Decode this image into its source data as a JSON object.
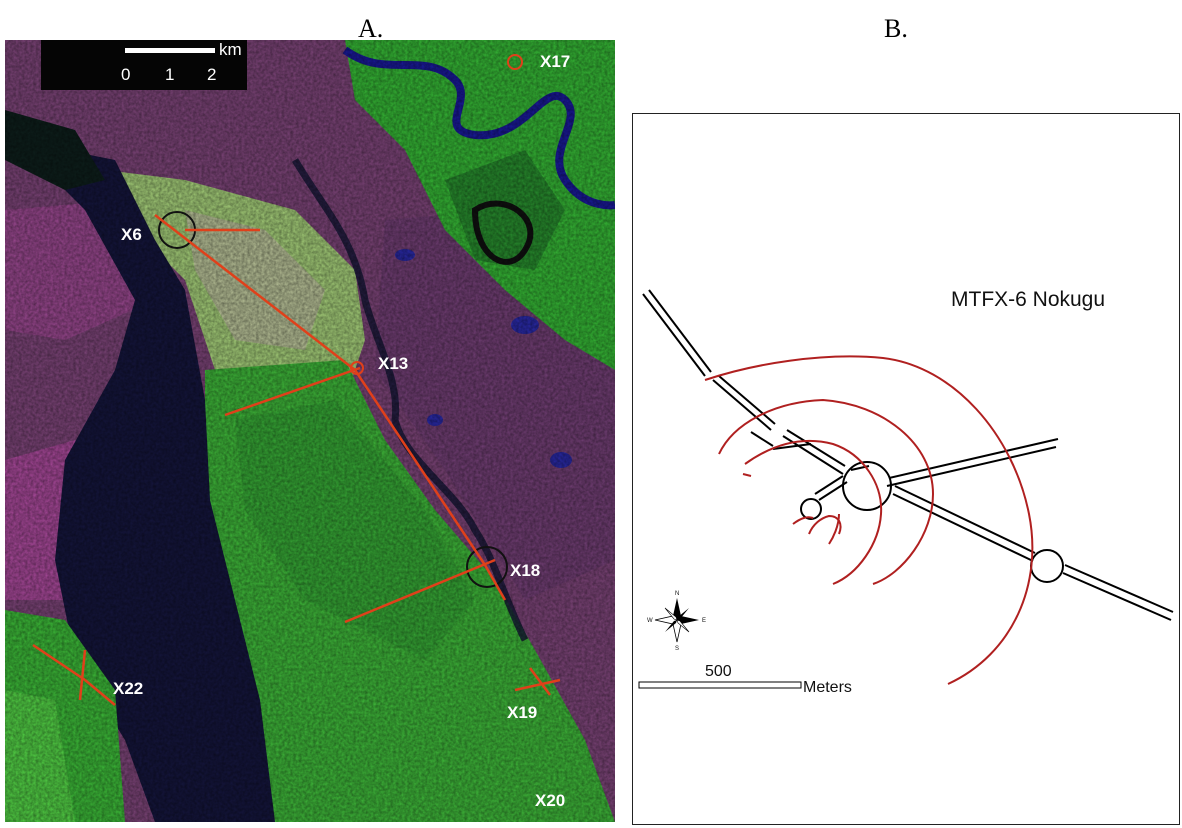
{
  "panels": {
    "a_label": "A.",
    "b_label": "B."
  },
  "map_a": {
    "scale_unit": "km",
    "scale_ticks": [
      "0",
      "1",
      "2"
    ],
    "sites": {
      "x17": "X17",
      "x6": "X6",
      "x13": "X13",
      "x18": "X18",
      "x22": "X22",
      "x19": "X19",
      "x20": "X20"
    },
    "colors": {
      "water": "#1a1a9a",
      "forest": "#3cc43c",
      "savanna": "#8a4a8a",
      "swamp": "#14143a",
      "trench": "#e0401a"
    }
  },
  "map_b": {
    "title": "MTFX-6 Nokugu",
    "scale_value": "500",
    "scale_unit": "Meters",
    "compass": {
      "n": "N",
      "s": "S",
      "e": "E",
      "w": "W"
    },
    "colors": {
      "road": "#000000",
      "trench": "#b02020"
    }
  }
}
